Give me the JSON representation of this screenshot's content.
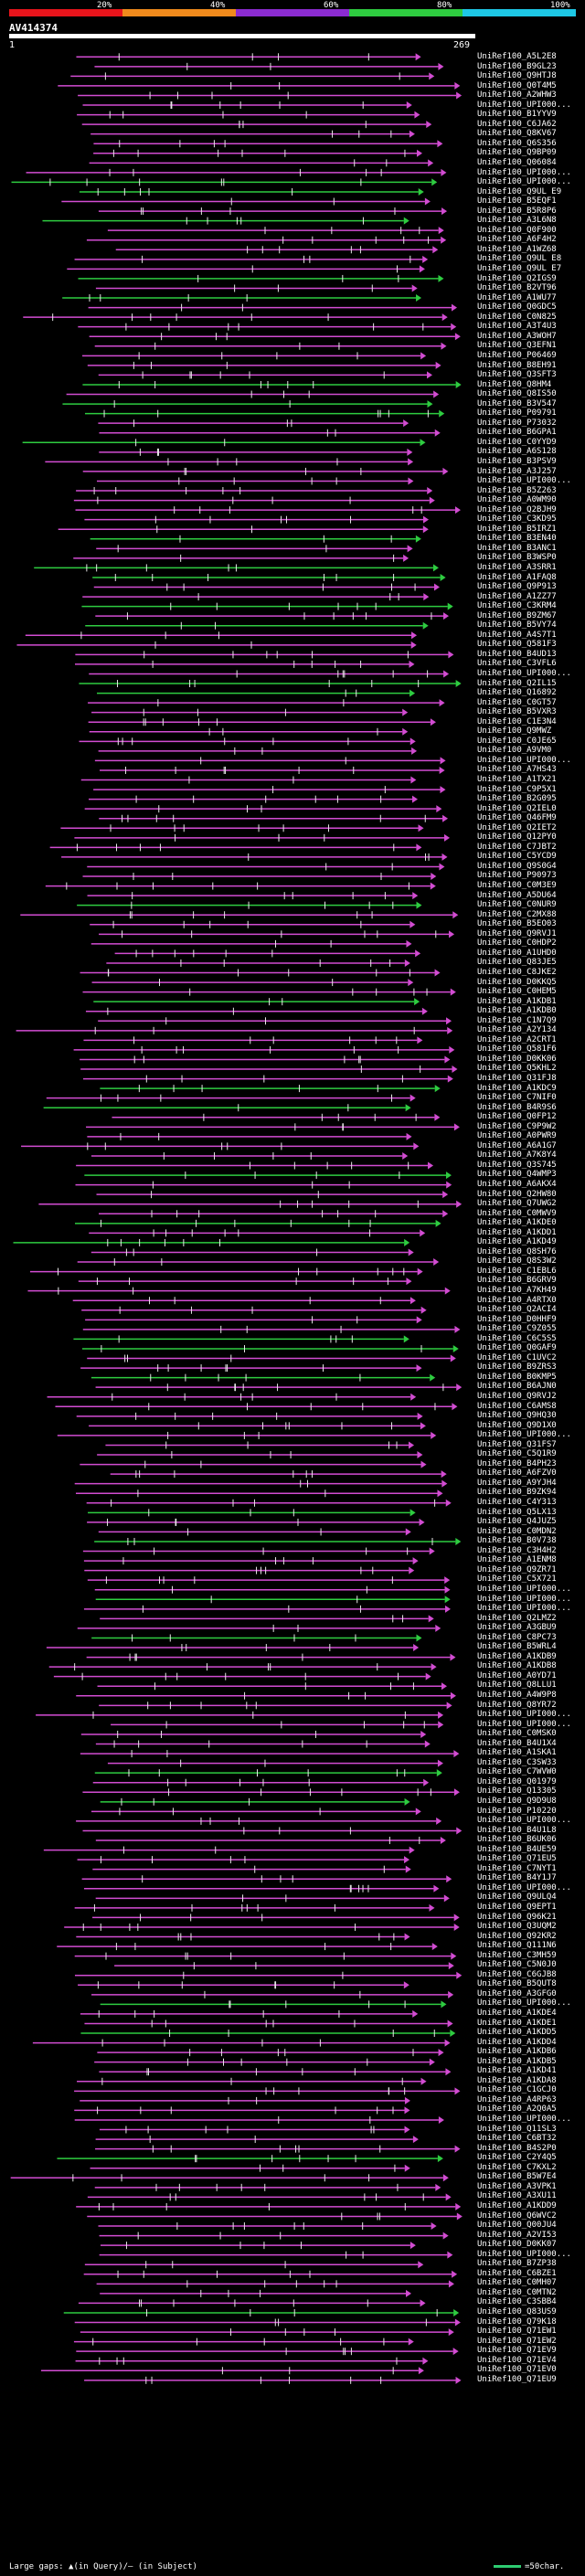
{
  "scale": {
    "segments": [
      {
        "color": "#e8141b",
        "label": "20%"
      },
      {
        "color": "#f08a1c",
        "label": "40%"
      },
      {
        "color": "#8b2bd0",
        "label": "60%"
      },
      {
        "color": "#2ecc40",
        "label": "80%"
      },
      {
        "color": "#1ec8e6",
        "label": "100%"
      }
    ]
  },
  "query": {
    "id": "AV414374",
    "start": "1",
    "end": "269"
  },
  "hits": [
    "UniRef100_A5L2E8",
    "UniRef100_B9GL23",
    "UniRef100_Q9HTJ8",
    "UniRef100_Q0T4M5",
    "UniRef100_A2WHW3",
    "UniRef100_UPI000...",
    "UniRef100_B1YYV9",
    "UniRef100_C6JA62",
    "UniRef100_Q8KV67",
    "UniRef100_Q6S356",
    "UniRef100_Q9BP09",
    "UniRef100_Q06084",
    "UniRef100_UPI000...",
    "UniRef100_UPI000...",
    "UniRef100_Q9UL E9",
    "UniRef100_B5EQF1",
    "UniRef100_B5R8P6",
    "UniRef100_A3L6N8",
    "UniRef100_Q0F900",
    "UniRef100_A6F4H2",
    "UniRef100_A1WZ68",
    "UniRef100_Q9UL E8",
    "UniRef100_Q9UL E7",
    "UniRef100_Q2IGS9",
    "UniRef100_B2VT96",
    "UniRef100_A1WU77",
    "UniRef100_Q0GDC5",
    "UniRef100_C0N825",
    "UniRef100_A3T4U3",
    "UniRef100_A3WOH7",
    "UniRef100_Q3EFN1",
    "UniRef100_P06469",
    "UniRef100_B8EH91",
    "UniRef100_Q3SFT3",
    "UniRef100_Q8HM4",
    "UniRef100_Q8IS50",
    "UniRef100_B3V547",
    "UniRef100_P09791",
    "UniRef100_P73032",
    "UniRef100_B6GPA1",
    "UniRef100_C0YYD9",
    "UniRef100_A6S128",
    "UniRef100_B3PSV9",
    "UniRef100_A3J257",
    "UniRef100_UPI000...",
    "UniRef100_B5Z263",
    "UniRef100_A0WM90",
    "UniRef100_Q2BJH9",
    "UniRef100_C3KD95",
    "UniRef100_B5IRZ1",
    "UniRef100_B3EN40",
    "UniRef100_B3ANC1",
    "UniRef100_B3WSP0",
    "UniRef100_A3SRR1",
    "UniRef100_A1FAQ8",
    "UniRef100_Q9P913",
    "UniRef100_A1ZZ77",
    "UniRef100_C3KRM4",
    "UniRef100_B9ZM67",
    "UniRef100_B5VY74",
    "UniRef100_A4S7T1",
    "UniRef100_Q581F3",
    "UniRef100_B4UD13",
    "UniRef100_C3VFL6",
    "UniRef100_UPI000...",
    "UniRef100_Q2IL15",
    "UniRef100_Q16892",
    "UniRef100_C0GT57",
    "UniRef100_B5VXR3",
    "UniRef100_C1E3N4",
    "UniRef100_Q9MWZ",
    "UniRef100_C0JE65",
    "UniRef100_A9VM0",
    "UniRef100_UPI000...",
    "UniRef100_A7HS43",
    "UniRef100_A1TX21",
    "UniRef100_C9P5X1",
    "UniRef100_B2G095",
    "UniRef100_Q2IEL0",
    "UniRef100_Q46FM9",
    "UniRef100_Q2IET2",
    "UniRef100_Q12PY0",
    "UniRef100_C7JBT2",
    "UniRef100_C5YCD9",
    "UniRef100_Q9S0G4",
    "UniRef100_P90973",
    "UniRef100_C0M3E9",
    "UniRef100_A5DU64",
    "UniRef100_C0NUR9",
    "UniRef100_C2MX88",
    "UniRef100_B5EO03",
    "UniRef100_Q9RVJ1",
    "UniRef100_C0HDP2",
    "UniRef100_A1UHD0",
    "UniRef100_Q83JE5",
    "UniRef100_C8JKE2",
    "UniRef100_D0KKQ5",
    "UniRef100_C0HEM5",
    "UniRef100_A1KDB1",
    "UniRef100_A1KDB0",
    "UniRef100_C1N7Q9",
    "UniRef100_A2Y134",
    "UniRef100_A2CRT1",
    "UniRef100_Q581F6",
    "UniRef100_D0KK06",
    "UniRef100_Q5KHL2",
    "UniRef100_Q31FJ8",
    "UniRef100_A1KDC9",
    "UniRef100_C7NIF0",
    "UniRef100_B4R9S6",
    "UniRef100_Q0FP12",
    "UniRef100_C9P9W2",
    "UniRef100_A0PWR9",
    "UniRef100_A6A1G7",
    "UniRef100_A7K8Y4",
    "UniRef100_Q3S745",
    "UniRef100_Q4WMP3",
    "UniRef100_A6AKX4",
    "UniRef100_Q2HW80",
    "UniRef100_Q7UWG2",
    "UniRef100_C0MWV9",
    "UniRef100_A1KDE0",
    "UniRef100_A1KDD1",
    "UniRef100_A1KD49",
    "UniRef100_Q8SH76",
    "UniRef100_Q8S3W2",
    "UniRef100_C1EBL6",
    "UniRef100_B6GRV9",
    "UniRef100_A7KH49",
    "UniRef100_A4RTX0",
    "UniRef100_Q2ACI4",
    "UniRef100_D0HHF9",
    "UniRef100_C9Z055",
    "UniRef100_C6C5S5",
    "UniRef100_Q0GAF9",
    "UniRef100_C1UVC2",
    "UniRef100_B9ZRS3",
    "UniRef100_B0KMP5",
    "UniRef100_B6AJN0",
    "UniRef100_Q9RVJ2",
    "UniRef100_C6AMS8",
    "UniRef100_Q9HQ30",
    "UniRef100_Q9D1X0",
    "UniRef100_UPI000...",
    "UniRef100_Q31FS7",
    "UniRef100_C5Q1R9",
    "UniRef100_B4PH23",
    "UniRef100_A6FZV0",
    "UniRef100_A9YJH4",
    "UniRef100_B9ZK94",
    "UniRef100_C4Y313",
    "UniRef100_Q5LX13",
    "UniRef100_Q4JUZ5",
    "UniRef100_C0MDN2",
    "UniRef100_B0V738",
    "UniRef100_C3H4H2",
    "UniRef100_A1ENM8",
    "UniRef100_Q9ZR71",
    "UniRef100_C5X721",
    "UniRef100_UPI000...",
    "UniRef100_UPI000...",
    "UniRef100_UPI000...",
    "UniRef100_Q2LMZ2",
    "UniRef100_A3GBU9",
    "UniRef100_C8PC73",
    "UniRef100_B5WRL4",
    "UniRef100_A1KDB9",
    "UniRef100_A1KDB8",
    "UniRef100_A0YD71",
    "UniRef100_Q8LLU1",
    "UniRef100_A4W9P8",
    "UniRef100_Q8YR72",
    "UniRef100_UPI000...",
    "UniRef100_UPI000...",
    "UniRef100_C0MSK0",
    "UniRef100_B4U1X4",
    "UniRef100_A1SKA1",
    "UniRef100_C3SW33",
    "UniRef100_C7WVW0",
    "UniRef100_Q01979",
    "UniRef100_Q13305",
    "UniRef100_Q9D9U8",
    "UniRef100_P10220",
    "UniRef100_UPI000...",
    "UniRef100_B4U1L8",
    "UniRef100_B6UK06",
    "UniRef100_B4UE59",
    "UniRef100_Q71EU5",
    "UniRef100_C7NYT1",
    "UniRef100_B4Y1J7",
    "UniRef100_UPI000...",
    "UniRef100_Q9ULQ4",
    "UniRef100_Q9EPT1",
    "UniRef100_Q96K21",
    "UniRef100_Q3UQM2",
    "UniRef100_Q92KR2",
    "UniRef100_Q111N6",
    "UniRef100_C3MH59",
    "UniRef100_C5N0J0",
    "UniRef100_C6GJB8",
    "UniRef100_B5QUT8",
    "UniRef100_A3GFG0",
    "UniRef100_UPI000...",
    "UniRef100_A1KDE4",
    "UniRef100_A1KDE1",
    "UniRef100_A1KDD5",
    "UniRef100_A1KDD4",
    "UniRef100_A1KDB6",
    "UniRef100_A1KDB5",
    "UniRef100_A1KD41",
    "UniRef100_A1KDA8",
    "UniRef100_C1GCJ0",
    "UniRef100_A4RP63",
    "UniRef100_A2Q0A5",
    "UniRef100_UPI000...",
    "UniRef100_Q11SL3",
    "UniRef100_C6BT32",
    "UniRef100_B4S2P0",
    "UniRef100_C2Y4Q5",
    "UniRef100_C7KXL2",
    "UniRef100_B5W7E4",
    "UniRef100_A3VPK1",
    "UniRef100_A3XU11",
    "UniRef100_A1KDD9",
    "UniRef100_Q6WVC2",
    "UniRef100_Q00JU4",
    "UniRef100_A2VI53",
    "UniRef100_D0KK07",
    "UniRef100_UPI000...",
    "UniRef100_B7ZP38",
    "UniRef100_C6BZE1",
    "UniRef100_C0MH07",
    "UniRef100_C0MTN2",
    "UniRef100_C3SBB4",
    "UniRef100_Q83US9",
    "UniRef100_Q79K18",
    "UniRef100_Q71EW1",
    "UniRef100_Q71EW2",
    "UniRef100_Q71EV9",
    "UniRef100_Q71EV4",
    "UniRef100_Q71EV0",
    "UniRef100_Q71EU9"
  ],
  "legend": {
    "left": "Large gaps: ▲(in Query)/— (in Subject)",
    "right": "=50char."
  }
}
